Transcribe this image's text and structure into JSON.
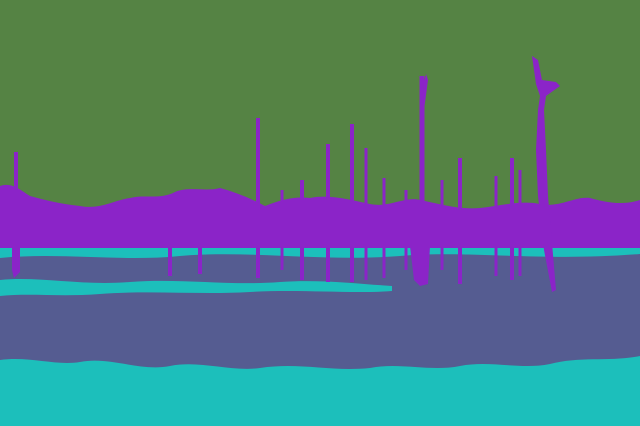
{
  "image": {
    "kind": "segmentation-map",
    "colors": {
      "sky": "#558344",
      "vegetation": "#8b24c8",
      "water": "#1cbfbb",
      "ground": "#555c91"
    }
  }
}
